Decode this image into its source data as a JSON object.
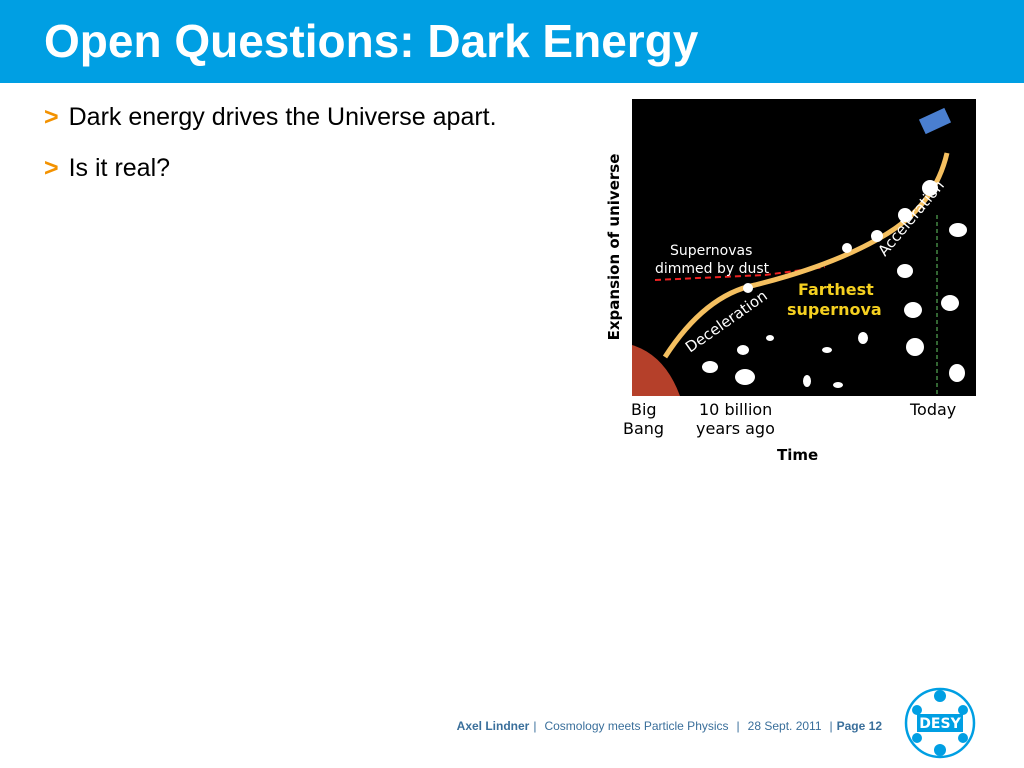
{
  "header": {
    "title": "Open Questions: Dark Energy"
  },
  "bullets": {
    "marker": ">",
    "items": [
      "Dark energy drives the Universe apart.",
      "Is it real?"
    ]
  },
  "figure": {
    "y_label": "Expansion of universe",
    "x_label": "Time",
    "dust_label": [
      "Supernovas",
      "dimmed by dust"
    ],
    "farthest_label": [
      "Farthest",
      "supernova"
    ],
    "deceleration": "Deceleration",
    "acceleration": "Acceleration",
    "big_bang": [
      "Big",
      "Bang"
    ],
    "ten_billion": [
      "10 billion",
      "years ago"
    ],
    "today": "Today"
  },
  "footer": {
    "author": "Axel Lindner",
    "separator": "|",
    "event": "Cosmology meets Particle Physics",
    "date": "28 Sept. 2011",
    "page": "Page 12"
  },
  "logo": {
    "text": "DESY"
  }
}
